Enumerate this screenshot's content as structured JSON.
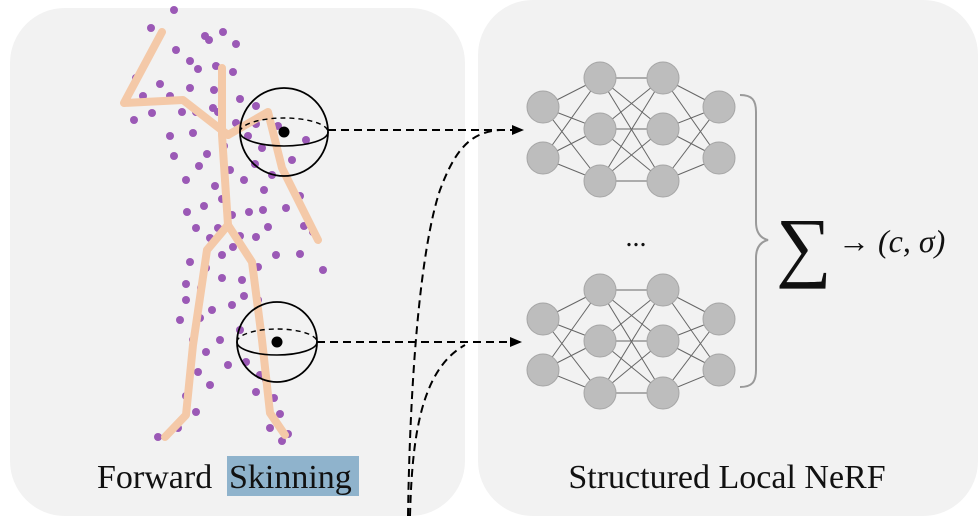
{
  "left_panel": {
    "caption_prefix": "Forward",
    "caption_highlight": "Skinning"
  },
  "right_panel": {
    "caption": "Structured Local NeRF",
    "ellipsis": "...",
    "sum_symbol": "∑",
    "output": "→ (c, σ)"
  },
  "colors": {
    "panel_bg": "#f2f2f2",
    "point": "#9b59b6",
    "skeleton": "#f4c9a8",
    "neuron": "#bdbdbd",
    "highlight": "#8fb3cc"
  }
}
